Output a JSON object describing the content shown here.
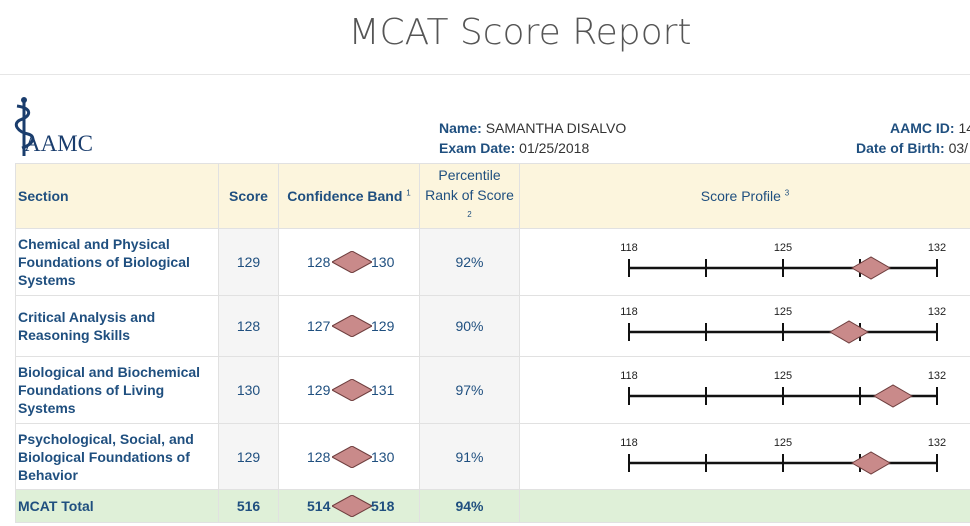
{
  "page_title": "MCAT Score Report",
  "brand": {
    "logo_text": "AAMC",
    "color": "#1a3d6d"
  },
  "candidate": {
    "name_label": "Name:",
    "name": "SAMANTHA DISALVO",
    "exam_date_label": "Exam Date:",
    "exam_date": "01/25/2018",
    "aamc_id_label": "AAMC ID:",
    "aamc_id": "14",
    "dob_label": "Date of Birth:",
    "dob": "03/"
  },
  "table": {
    "headers": {
      "section": "Section",
      "score": "Score",
      "band": "Confidence Band",
      "band_note": "1",
      "percentile_line1": "Percentile",
      "percentile_line2": "Rank of Score",
      "percentile_note": "2",
      "profile": "Score Profile",
      "profile_note": "3"
    },
    "scale": {
      "min": 118,
      "mid": 125,
      "max": 132,
      "ticks": [
        118,
        120,
        122,
        124,
        126,
        128,
        130,
        132
      ]
    },
    "rows": [
      {
        "section": "Chemical and Physical Foundations of Biological Systems",
        "score": "129",
        "band_low": "128",
        "band_high": "130",
        "percentile": "92%"
      },
      {
        "section": "Critical Analysis and Reasoning Skills",
        "score": "128",
        "band_low": "127",
        "band_high": "129",
        "percentile": "90%"
      },
      {
        "section": "Biological and Biochemical Foundations of Living Systems",
        "score": "130",
        "band_low": "129",
        "band_high": "131",
        "percentile": "97%"
      },
      {
        "section": "Psychological, Social, and Biological Foundations of Behavior",
        "score": "129",
        "band_low": "128",
        "band_high": "130",
        "percentile": "91%"
      }
    ],
    "total": {
      "section": "MCAT Total",
      "score": "516",
      "band_low": "514",
      "band_high": "518",
      "percentile": "94%"
    }
  },
  "colors": {
    "header_bg": "#fcf5dd",
    "total_bg": "#dff0d8",
    "diamond": "#c98a8a",
    "label": "#1f4f7f"
  }
}
